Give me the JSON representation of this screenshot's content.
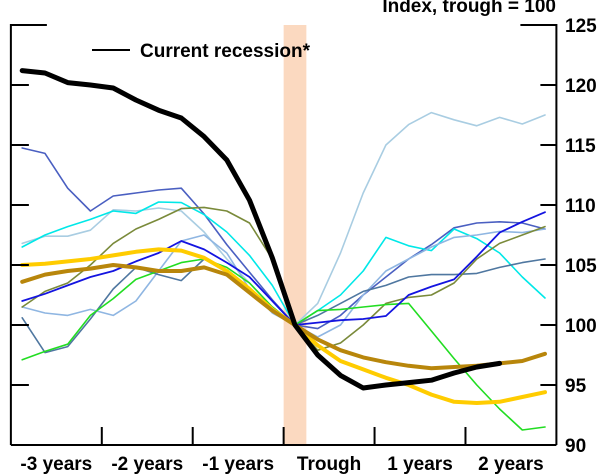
{
  "chart_data": {
    "type": "line",
    "title": "",
    "ylabel": "Index, trough = 100",
    "xlabel": "",
    "ylim": [
      90,
      125
    ],
    "yticks": [
      90,
      95,
      100,
      105,
      110,
      115,
      120,
      125
    ],
    "x": [
      -12,
      -11,
      -10,
      -9,
      -8,
      -7,
      -6,
      -5,
      -4,
      -3,
      -2,
      -1,
      0,
      1,
      2,
      3,
      4,
      5,
      6,
      7,
      8,
      9,
      10,
      11
    ],
    "xtick_labels": [
      "-3 years",
      "-2 years",
      "-1 years",
      "Trough",
      "1 years",
      "2 years"
    ],
    "shaded_region": {
      "label": "Trough",
      "color": "#fbd9c0"
    },
    "legend": {
      "position": "top-left",
      "entries": [
        "Current recession*"
      ]
    },
    "grid": false,
    "series": [
      {
        "name": "Current recession*",
        "color": "#000000",
        "width": 5,
        "values": [
          121.2,
          121.0,
          120.2,
          120.0,
          119.75,
          118.75,
          117.9,
          117.25,
          115.7,
          113.75,
          110.4,
          105.6,
          100,
          97.5,
          95.8,
          94.75,
          95.0,
          95.2,
          95.4,
          96.0,
          96.5,
          96.8,
          null,
          null
        ]
      },
      {
        "color": "#4a5fc1",
        "width": 1.6,
        "values": [
          114.75,
          114.3,
          111.4,
          109.5,
          110.75,
          111,
          111.25,
          111.4,
          109.25,
          106.7,
          104.4,
          102.1,
          100,
          99.7,
          100.8,
          102.5,
          104,
          105.5,
          106.7,
          108.1,
          108.5,
          108.6,
          108.5,
          108.0
        ]
      },
      {
        "color": "#a9cde2",
        "width": 1.6,
        "values": [
          106.8,
          107.4,
          107.4,
          107.9,
          109.6,
          109.5,
          109.75,
          109.5,
          107.75,
          105.5,
          103.5,
          101.5,
          100,
          101.8,
          106,
          111,
          115,
          116.7,
          117.7,
          117.1,
          116.6,
          117.3,
          116.75,
          117.5
        ]
      },
      {
        "color": "#00e8e8",
        "width": 1.6,
        "values": [
          106.5,
          107.5,
          108.2,
          108.8,
          109.5,
          109.3,
          110.25,
          110.2,
          109.2,
          107.75,
          105.8,
          103.3,
          100,
          101.2,
          102.5,
          104.5,
          107.3,
          106.6,
          106.2,
          108,
          107.2,
          106,
          104,
          102.25
        ]
      },
      {
        "color": "#8fb6e2",
        "width": 1.6,
        "values": [
          101.5,
          101.0,
          100.8,
          101.3,
          100.8,
          102,
          104.5,
          107,
          107.5,
          106,
          103,
          101,
          100,
          99,
          100,
          102.5,
          104.5,
          105.5,
          106.5,
          107.3,
          107.5,
          107.8,
          107.7,
          108.0
        ]
      },
      {
        "color": "#4f77a0",
        "width": 1.6,
        "values": [
          100.6,
          97.7,
          98.2,
          100.5,
          103,
          104.8,
          104.2,
          103.7,
          105.5,
          104.5,
          103,
          101.5,
          100,
          100.8,
          101.8,
          102.8,
          103.3,
          104,
          104.2,
          104.2,
          104.3,
          104.8,
          105.2,
          105.5
        ]
      },
      {
        "color": "#1414e0",
        "width": 1.8,
        "values": [
          102,
          102.6,
          103.3,
          104,
          104.5,
          105.3,
          106,
          107,
          106.3,
          105.2,
          104,
          102,
          100,
          100.2,
          100.4,
          100.5,
          100.75,
          102.5,
          103.2,
          103.8,
          105.7,
          107.7,
          108.6,
          109.4
        ]
      },
      {
        "color": "#7a8a3a",
        "width": 1.6,
        "values": [
          101.5,
          102.8,
          103.5,
          105,
          106.8,
          108,
          108.8,
          109.7,
          109.8,
          109.5,
          108.5,
          105.5,
          100,
          97.9,
          98.5,
          100,
          101.8,
          102.3,
          102.5,
          103.5,
          105.5,
          106.8,
          107.5,
          108.2
        ]
      },
      {
        "color": "#22dd22",
        "width": 1.6,
        "values": [
          97.1,
          97.8,
          98.4,
          100.8,
          102.2,
          103.8,
          104.5,
          105.2,
          105.5,
          104.8,
          103.5,
          101.5,
          100,
          101.2,
          101.3,
          101.5,
          101.7,
          101.8,
          99.5,
          97.2,
          95,
          93,
          91.25,
          91.5
        ]
      },
      {
        "color": "#ffcc00",
        "width": 4,
        "values": [
          105,
          105.1,
          105.3,
          105.5,
          105.8,
          106.1,
          106.3,
          106.2,
          105.6,
          104.5,
          103,
          101.3,
          100,
          98.3,
          97,
          96.3,
          95.6,
          95,
          94.2,
          93.6,
          93.5,
          93.6,
          94,
          94.4
        ]
      },
      {
        "color": "#b8860b",
        "width": 4,
        "values": [
          103.6,
          104.2,
          104.5,
          104.7,
          105,
          104.8,
          104.5,
          104.5,
          104.8,
          104.2,
          102.7,
          101.2,
          100,
          98.8,
          97.9,
          97.3,
          96.9,
          96.6,
          96.4,
          96.5,
          96.6,
          96.8,
          97,
          97.6
        ]
      }
    ]
  }
}
